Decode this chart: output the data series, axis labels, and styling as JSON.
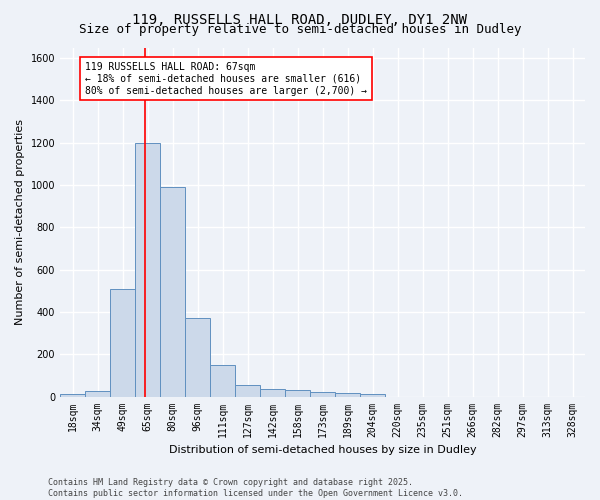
{
  "title1": "119, RUSSELLS HALL ROAD, DUDLEY, DY1 2NW",
  "title2": "Size of property relative to semi-detached houses in Dudley",
  "xlabel": "Distribution of semi-detached houses by size in Dudley",
  "ylabel": "Number of semi-detached properties",
  "categories": [
    "18sqm",
    "34sqm",
    "49sqm",
    "65sqm",
    "80sqm",
    "96sqm",
    "111sqm",
    "127sqm",
    "142sqm",
    "158sqm",
    "173sqm",
    "189sqm",
    "204sqm",
    "220sqm",
    "235sqm",
    "251sqm",
    "266sqm",
    "282sqm",
    "297sqm",
    "313sqm",
    "328sqm"
  ],
  "values": [
    10,
    25,
    510,
    1200,
    990,
    370,
    148,
    55,
    38,
    30,
    22,
    15,
    12,
    0,
    0,
    0,
    0,
    0,
    0,
    0,
    0
  ],
  "bar_color": "#ccd9ea",
  "bar_edge_color": "#6090c0",
  "vline_color": "red",
  "vline_x": 2.9,
  "annotation_text": "119 RUSSELLS HALL ROAD: 67sqm\n← 18% of semi-detached houses are smaller (616)\n80% of semi-detached houses are larger (2,700) →",
  "annotation_box_color": "white",
  "annotation_box_edge_color": "red",
  "ylim": [
    0,
    1650
  ],
  "yticks": [
    0,
    200,
    400,
    600,
    800,
    1000,
    1200,
    1400,
    1600
  ],
  "footer1": "Contains HM Land Registry data © Crown copyright and database right 2025.",
  "footer2": "Contains public sector information licensed under the Open Government Licence v3.0.",
  "bg_color": "#eef2f8",
  "grid_color": "white",
  "title1_fontsize": 10,
  "title2_fontsize": 9,
  "xlabel_fontsize": 8,
  "ylabel_fontsize": 8,
  "tick_fontsize": 7,
  "annot_fontsize": 7,
  "footer_fontsize": 6
}
